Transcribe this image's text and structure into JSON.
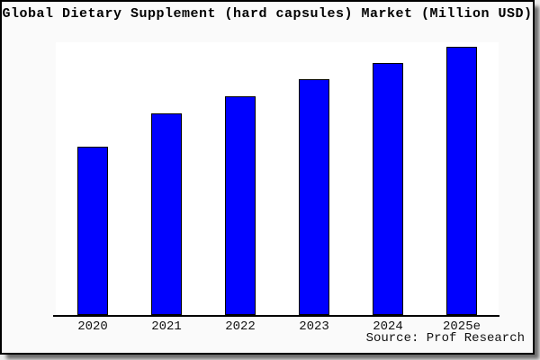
{
  "window": {
    "background_color": "#ededed",
    "card_background": "#fafafa",
    "card_border_color": "#000000"
  },
  "chart_data": {
    "type": "bar",
    "title": "Global Dietary Supplement (hard capsules) Market (Million USD)",
    "categories": [
      "2020",
      "2021",
      "2022",
      "2023",
      "2024",
      "2025e"
    ],
    "series": [
      {
        "name": "Global Dietary Supplement (hard capsules) Market",
        "values": [
          62.7,
          75.2,
          81.6,
          87.9,
          94.0,
          100.0
        ]
      }
    ],
    "values_unit": "percent of tallest bar (no y-axis tick labels shown in chart)",
    "xlabel": "",
    "ylabel": "",
    "y_axis_ticks_visible": false,
    "grid": false,
    "legend": "none",
    "bar_color": "#0000fe",
    "bar_border_color": "#000000",
    "plot_background": "#ffffff",
    "source": "Source: Prof Research"
  }
}
